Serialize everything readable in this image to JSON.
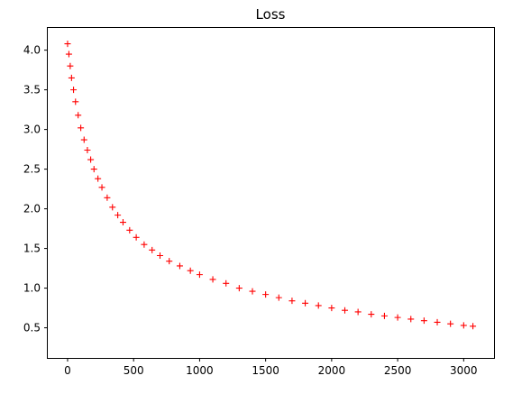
{
  "chart_data": {
    "type": "scatter",
    "title": "Loss",
    "xlabel": "",
    "ylabel": "",
    "marker": "+",
    "color": "#ff0000",
    "xlim": [
      -150,
      3230
    ],
    "ylim": [
      0.12,
      4.28
    ],
    "xticks": [
      0,
      500,
      1000,
      1500,
      2000,
      2500,
      3000
    ],
    "xtick_labels": [
      "0",
      "500",
      "1000",
      "1500",
      "2000",
      "2500",
      "3000"
    ],
    "yticks": [
      0.5,
      1.0,
      1.5,
      2.0,
      2.5,
      3.0,
      3.5,
      4.0
    ],
    "ytick_labels": [
      "0.5",
      "1.0",
      "1.5",
      "2.0",
      "2.5",
      "3.0",
      "3.5",
      "4.0"
    ],
    "grid": false,
    "legend": "none",
    "series": [
      {
        "x": [
          0,
          10,
          20,
          30,
          45,
          60,
          80,
          100,
          125,
          150,
          175,
          200,
          230,
          260,
          300,
          340,
          380,
          420,
          470,
          520,
          580,
          640,
          700,
          770,
          850,
          930,
          1000,
          1100,
          1200,
          1300,
          1400,
          1500,
          1600,
          1700,
          1800,
          1900,
          2000,
          2100,
          2200,
          2300,
          2400,
          2500,
          2600,
          2700,
          2800,
          2900,
          3000,
          3070
        ],
        "y": [
          4.08,
          3.95,
          3.8,
          3.65,
          3.5,
          3.35,
          3.18,
          3.02,
          2.87,
          2.74,
          2.62,
          2.5,
          2.38,
          2.27,
          2.14,
          2.02,
          1.92,
          1.83,
          1.73,
          1.64,
          1.55,
          1.48,
          1.41,
          1.34,
          1.28,
          1.22,
          1.17,
          1.11,
          1.06,
          1.0,
          0.96,
          0.92,
          0.88,
          0.84,
          0.81,
          0.78,
          0.75,
          0.72,
          0.7,
          0.67,
          0.65,
          0.63,
          0.61,
          0.59,
          0.57,
          0.55,
          0.53,
          0.52
        ]
      }
    ]
  }
}
